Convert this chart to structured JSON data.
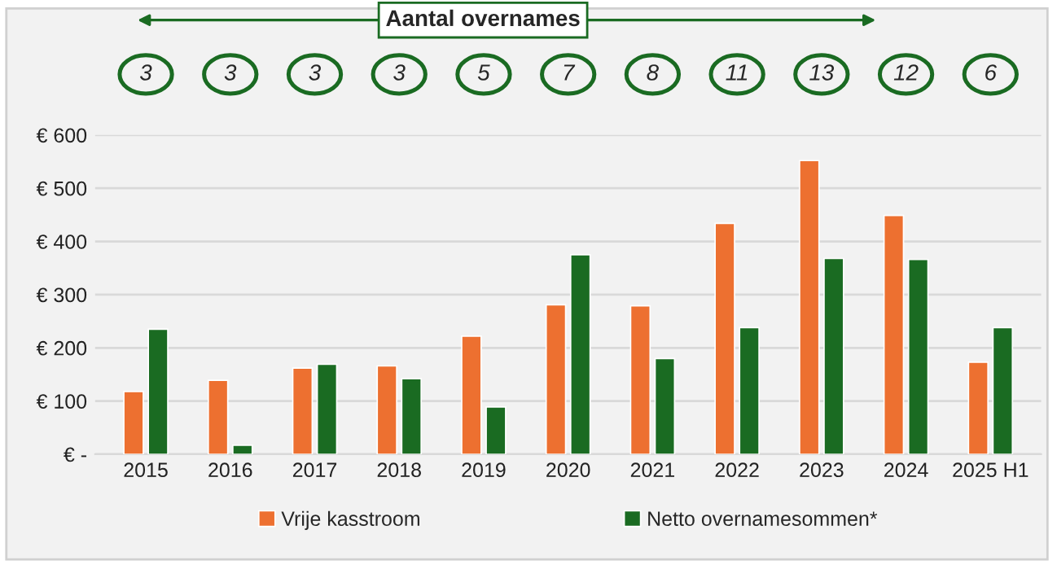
{
  "chart_data": {
    "type": "bar",
    "title": "Aantal overnames",
    "categories": [
      "2015",
      "2016",
      "2017",
      "2018",
      "2019",
      "2020",
      "2021",
      "2022",
      "2023",
      "2024",
      "2025 H1"
    ],
    "series": [
      {
        "name": "Vrije kasstroom",
        "color": "#ed7030",
        "values": [
          118,
          139,
          162,
          166,
          222,
          281,
          279,
          434,
          552,
          449,
          173
        ]
      },
      {
        "name": "Netto overnamesommen*",
        "color": "#1a6b22",
        "values": [
          235,
          17,
          169,
          142,
          89,
          375,
          180,
          238,
          368,
          366,
          238
        ]
      }
    ],
    "annotations": [
      "3",
      "3",
      "3",
      "3",
      "5",
      "7",
      "8",
      "11",
      "13",
      "12",
      "6"
    ],
    "ylim": [
      0,
      600
    ],
    "yticks": [
      {
        "value": 0,
        "label": "€ -"
      },
      {
        "value": 100,
        "label": "€ 100"
      },
      {
        "value": 200,
        "label": "€ 200"
      },
      {
        "value": 300,
        "label": "€ 300"
      },
      {
        "value": 400,
        "label": "€ 400"
      },
      {
        "value": 500,
        "label": "€ 500"
      },
      {
        "value": 600,
        "label": "€ 600"
      }
    ],
    "grid": "y",
    "legend": "bottom"
  }
}
